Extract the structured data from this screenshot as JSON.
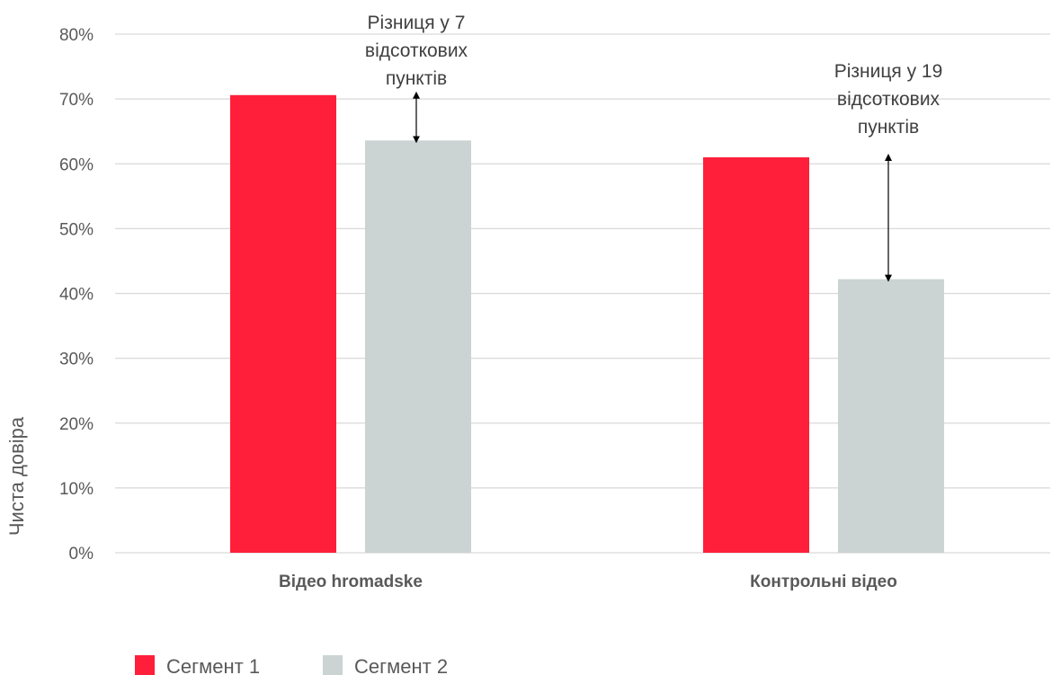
{
  "chart_data": {
    "type": "bar",
    "categories": [
      "Відео hromadske",
      "Контрольні відео"
    ],
    "series": [
      {
        "name": "Сегмент 1",
        "values": [
          70.6,
          61.0
        ],
        "color": "#FF1F3A"
      },
      {
        "name": "Сегмент 2",
        "values": [
          63.6,
          42.2
        ],
        "color": "#CBD3D3"
      }
    ],
    "ylabel": "Чиста довіра",
    "xlabel": "",
    "ylim": [
      0,
      80
    ],
    "yticks": [
      0,
      10,
      20,
      30,
      40,
      50,
      60,
      70,
      80
    ],
    "ytick_labels": [
      "0%",
      "10%",
      "20%",
      "30%",
      "40%",
      "50%",
      "60%",
      "70%",
      "80%"
    ],
    "grid": true,
    "legend_position": "bottom-left",
    "annotations": [
      {
        "category_index": 0,
        "lines": [
          "Різниця у 7",
          "відсоткових",
          "пунктів"
        ],
        "arrow_from": 63.6,
        "arrow_to": 70.6
      },
      {
        "category_index": 1,
        "lines": [
          "Різниця у 19",
          "відсоткових",
          "пунктів"
        ],
        "arrow_from": 42.2,
        "arrow_to": 61.0
      }
    ]
  }
}
